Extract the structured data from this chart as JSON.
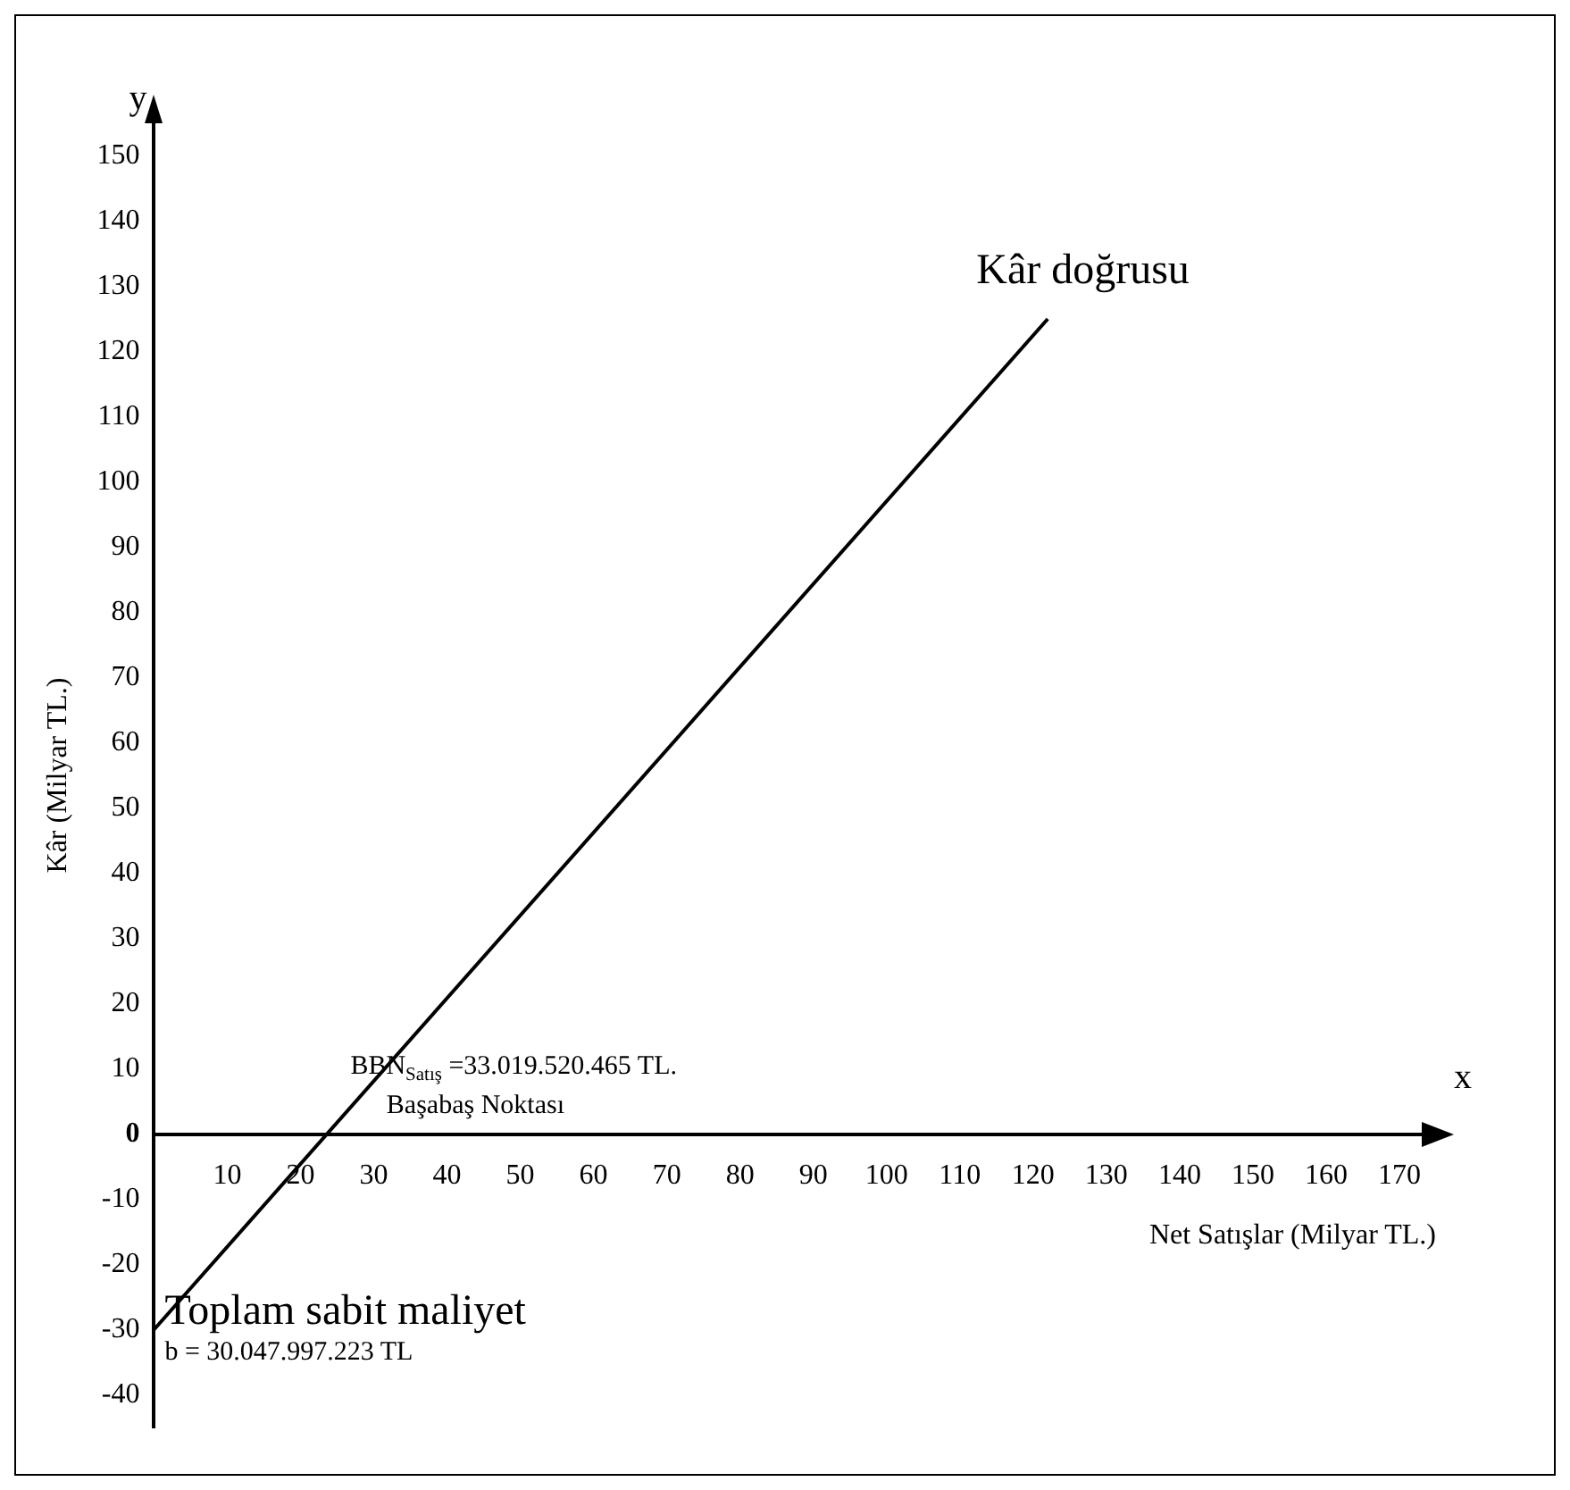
{
  "chart_data": {
    "type": "line",
    "xlabel": "Net Satışlar (Milyar TL.)",
    "ylabel": "Kâr (Milyar TL.)",
    "series": [
      {
        "name": "Kâr doğrusu",
        "color": "#000000",
        "x": [
          0,
          122
        ],
        "values": [
          -30,
          125
        ]
      }
    ],
    "xlim": [
      0,
      175
    ],
    "xticks": [
      10,
      20,
      30,
      40,
      50,
      60,
      70,
      80,
      90,
      100,
      110,
      120,
      130,
      140,
      150,
      160,
      170
    ],
    "ylim": [
      -45,
      155
    ],
    "yticks": [
      -40,
      -30,
      -20,
      -10,
      0,
      10,
      20,
      30,
      40,
      50,
      60,
      70,
      80,
      90,
      100,
      110,
      120,
      130,
      140,
      150
    ],
    "grid": false,
    "legend": false,
    "marker": "none",
    "line_style": "solid",
    "annotations": [
      "BBN$_{Satış}$ =33.019.520.465 TL.",
      "Başabaş Noktası",
      "Toplam sabit maliyet",
      "b = 30.047.997.223 TL",
      "x",
      "y"
    ]
  }
}
